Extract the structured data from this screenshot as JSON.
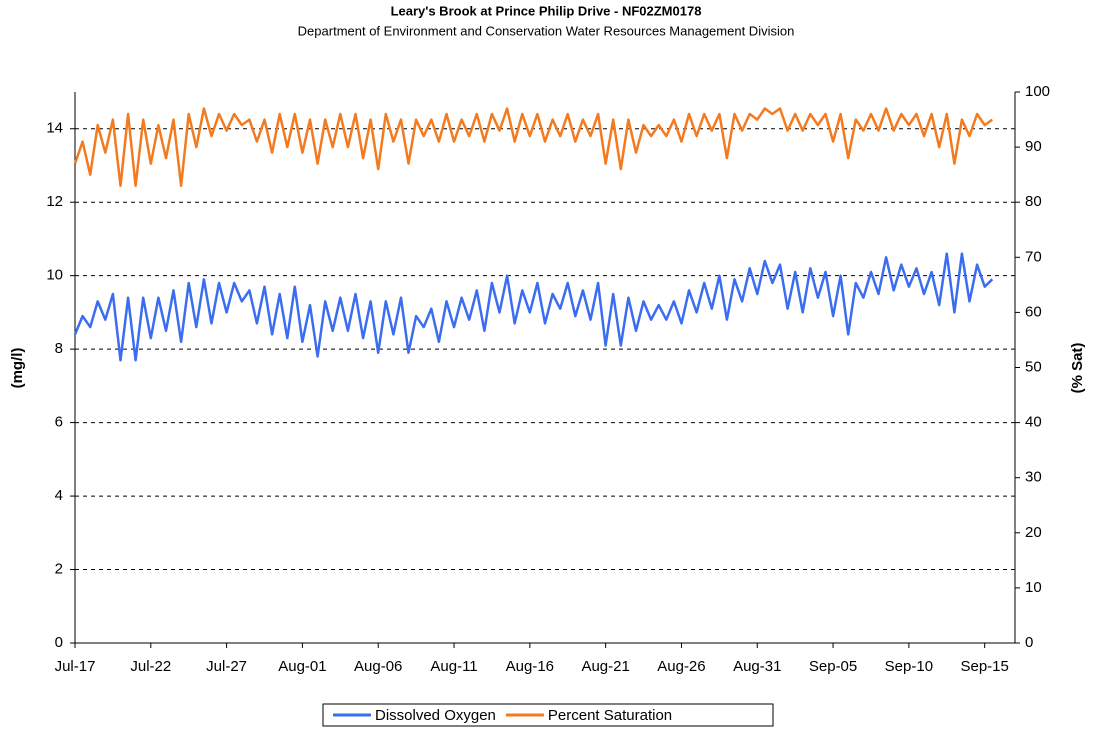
{
  "chart_data": {
    "type": "line",
    "title": "Leary's Brook at Prince Philip Drive - NF02ZM0178",
    "subtitle": "Department of Environment and Conservation Water Resources Management Division",
    "y_label": "(mg/l)",
    "y2_label": "(% Sat)",
    "x": [
      0,
      0.5,
      1,
      1.5,
      2,
      2.5,
      3,
      3.5,
      4,
      4.5,
      5,
      5.5,
      6,
      6.5,
      7,
      7.5,
      8,
      8.5,
      9,
      9.5,
      10,
      10.5,
      11,
      11.5,
      12,
      12.5,
      13,
      13.5,
      14,
      14.5,
      15,
      15.5,
      16,
      16.5,
      17,
      17.5,
      18,
      18.5,
      19,
      19.5,
      20,
      20.5,
      21,
      21.5,
      22,
      22.5,
      23,
      23.5,
      24,
      24.5,
      25,
      25.5,
      26,
      26.5,
      27,
      27.5,
      28,
      28.5,
      29,
      29.5,
      30,
      30.5,
      31,
      31.5,
      32,
      32.5,
      33,
      33.5,
      34,
      34.5,
      35,
      35.5,
      36,
      36.5,
      37,
      37.5,
      38,
      38.5,
      39,
      39.5,
      40,
      40.5,
      41,
      41.5,
      42,
      42.5,
      43,
      43.5,
      44,
      44.5,
      45,
      45.5,
      46,
      46.5,
      47,
      47.5,
      48,
      48.5,
      49,
      49.5,
      50,
      50.5,
      51,
      51.5,
      52,
      52.5,
      53,
      53.5,
      54,
      54.5,
      55,
      55.5,
      56,
      56.5,
      57,
      57.5,
      58,
      58.5,
      59,
      59.5,
      60,
      60.5
    ],
    "series": [
      {
        "name": "Dissolved Oxygen",
        "color": "#3b6df0",
        "values": [
          8.4,
          8.9,
          8.6,
          9.3,
          8.8,
          9.5,
          7.7,
          9.4,
          7.7,
          9.4,
          8.3,
          9.4,
          8.5,
          9.6,
          8.2,
          9.8,
          8.6,
          9.9,
          8.7,
          9.8,
          9.0,
          9.8,
          9.3,
          9.6,
          8.7,
          9.7,
          8.4,
          9.5,
          8.3,
          9.7,
          8.2,
          9.2,
          7.8,
          9.3,
          8.5,
          9.4,
          8.5,
          9.5,
          8.3,
          9.3,
          7.9,
          9.3,
          8.4,
          9.4,
          7.9,
          8.9,
          8.6,
          9.1,
          8.2,
          9.3,
          8.6,
          9.4,
          8.8,
          9.6,
          8.5,
          9.8,
          9.0,
          10.0,
          8.7,
          9.6,
          9.0,
          9.8,
          8.7,
          9.5,
          9.1,
          9.8,
          8.9,
          9.6,
          8.8,
          9.8,
          8.1,
          9.5,
          8.1,
          9.4,
          8.5,
          9.3,
          8.8,
          9.2,
          8.8,
          9.3,
          8.7,
          9.6,
          9.0,
          9.8,
          9.1,
          10.0,
          8.8,
          9.9,
          9.3,
          10.2,
          9.5,
          10.4,
          9.8,
          10.3,
          9.1,
          10.1,
          9.0,
          10.2,
          9.4,
          10.1,
          8.9,
          10.0,
          8.4,
          9.8,
          9.4,
          10.1,
          9.5,
          10.5,
          9.6,
          10.3,
          9.7,
          10.2,
          9.5,
          10.1,
          9.2,
          10.6,
          9.0,
          10.6,
          9.3,
          10.3,
          9.7,
          9.9
        ]
      },
      {
        "name": "Percent Saturation",
        "color": "#f47a1f",
        "axis": "y2",
        "values": [
          87,
          91,
          85,
          94,
          89,
          95,
          83,
          96,
          83,
          95,
          87,
          94,
          88,
          95,
          83,
          96,
          90,
          97,
          92,
          96,
          93,
          96,
          94,
          95,
          91,
          95,
          89,
          96,
          90,
          96,
          89,
          95,
          87,
          95,
          90,
          96,
          90,
          96,
          88,
          95,
          86,
          96,
          91,
          95,
          87,
          95,
          92,
          95,
          91,
          96,
          91,
          95,
          92,
          96,
          91,
          96,
          93,
          97,
          91,
          96,
          92,
          96,
          91,
          95,
          92,
          96,
          91,
          95,
          92,
          96,
          87,
          95,
          86,
          95,
          89,
          94,
          92,
          94,
          92,
          95,
          91,
          96,
          92,
          96,
          93,
          96,
          88,
          96,
          93,
          96,
          95,
          97,
          96,
          97,
          93,
          96,
          93,
          96,
          94,
          96,
          91,
          96,
          88,
          95,
          93,
          96,
          93,
          97,
          93,
          96,
          94,
          96,
          92,
          96,
          90,
          96,
          87,
          95,
          92,
          96,
          94,
          95
        ]
      }
    ],
    "xlim": [
      0,
      62
    ],
    "xticks": [
      {
        "value": 0,
        "label": "Jul-17"
      },
      {
        "value": 5,
        "label": "Jul-22"
      },
      {
        "value": 10,
        "label": "Jul-27"
      },
      {
        "value": 15,
        "label": "Aug-01"
      },
      {
        "value": 20,
        "label": "Aug-06"
      },
      {
        "value": 25,
        "label": "Aug-11"
      },
      {
        "value": 30,
        "label": "Aug-16"
      },
      {
        "value": 35,
        "label": "Aug-21"
      },
      {
        "value": 40,
        "label": "Aug-26"
      },
      {
        "value": 45,
        "label": "Aug-31"
      },
      {
        "value": 50,
        "label": "Sep-05"
      },
      {
        "value": 55,
        "label": "Sep-10"
      },
      {
        "value": 60,
        "label": "Sep-15"
      }
    ],
    "ylim": [
      0,
      15
    ],
    "yticks": [
      0,
      2,
      4,
      6,
      8,
      10,
      12,
      14
    ],
    "y2lim": [
      0,
      100
    ],
    "y2ticks": [
      0,
      10,
      20,
      30,
      40,
      50,
      60,
      70,
      80,
      90,
      100
    ],
    "grid": true,
    "legend": "bottom"
  }
}
